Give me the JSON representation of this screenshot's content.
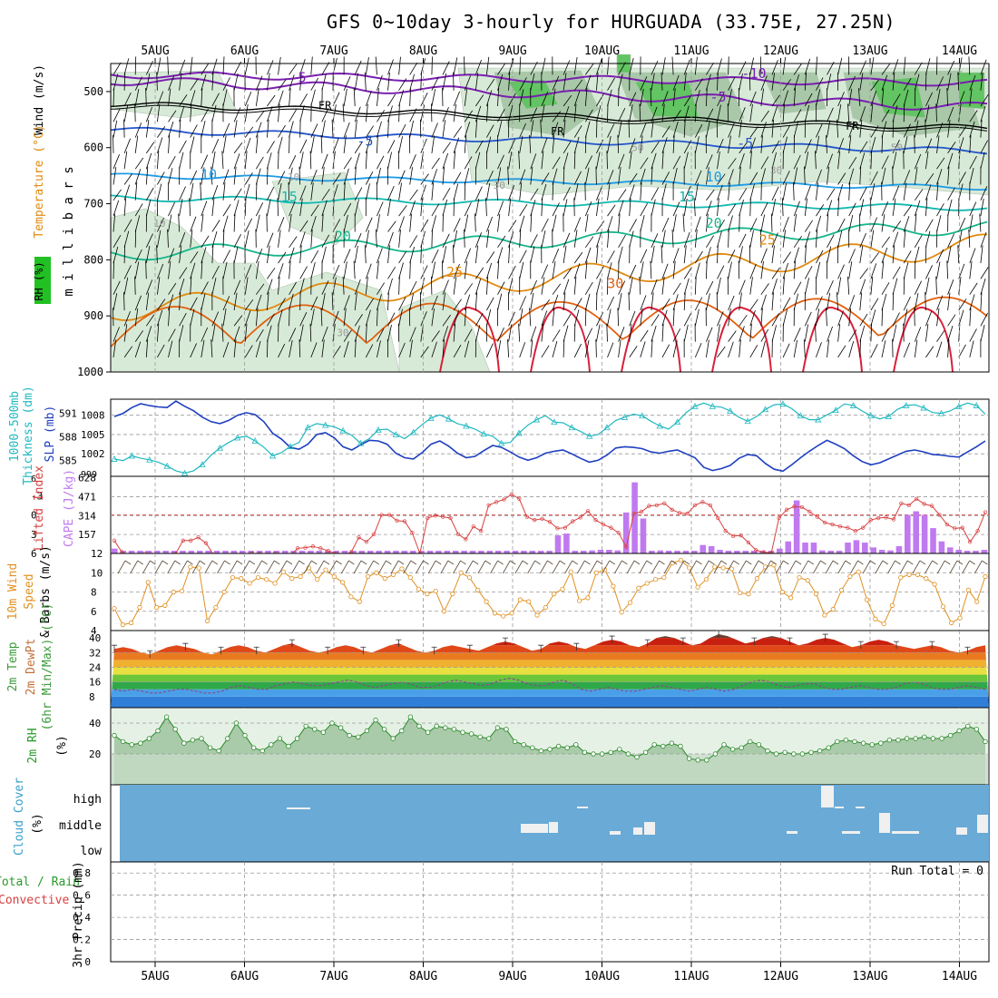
{
  "header": {
    "title": "GFS 0~10day 3-hourly for HURGUADA (33.75E, 27.25N)"
  },
  "days": [
    "5AUG",
    "6AUG",
    "7AUG",
    "8AUG",
    "9AUG",
    "10AUG",
    "11AUG",
    "12AUG",
    "13AUG",
    "14AUG"
  ],
  "colors": {
    "rh_fill": "#d7ead7",
    "rh_dark": "#a8c8a8",
    "rh_green": "#62c462",
    "temp_cold": "#7a1fb0",
    "temp_blue": "#2255cc",
    "temp_lblue": "#1e9be6",
    "temp_cyan": "#11b8b0",
    "temp_teal": "#16b58a",
    "temp_orange": "#e08a10",
    "temp_dorange": "#e06010",
    "temp_red": "#d8203a",
    "slp": "#1f3fbf",
    "thick": "#20b8c0",
    "cape": "#c07af0",
    "li": "#d84040",
    "wind": "#e09020",
    "cloud_bg": "#6aaad6"
  },
  "chart_data": [
    {
      "id": "upper-air",
      "type": "heatmap",
      "title": "GFS 0~10day 3-hourly for HURGUADA (33.75E, 27.25N)",
      "ylabel": "millibars",
      "left_labels": [
        "Wind (m/s)",
        "Temperature (°C)",
        "RH (%)"
      ],
      "y_ticks": [
        500,
        600,
        700,
        800,
        900,
        1000
      ],
      "ylim": [
        1000,
        450
      ],
      "contour_labels": [
        {
          "text": "-10",
          "x": 6.7,
          "p": 468
        },
        {
          "text": "-5",
          "x": 1.6,
          "p": 475
        },
        {
          "text": "-5",
          "x": 6.3,
          "p": 510
        },
        {
          "text": "FR",
          "x": 1.9,
          "p": 524
        },
        {
          "text": "FR",
          "x": 4.5,
          "p": 570
        },
        {
          "text": "FR",
          "x": 7.8,
          "p": 560
        },
        {
          "text": "-5",
          "x": 2.35,
          "p": 588
        },
        {
          "text": "-5",
          "x": 6.6,
          "p": 592
        },
        {
          "text": "10",
          "x": 0.6,
          "p": 648
        },
        {
          "text": "10",
          "x": 6.25,
          "p": 652
        },
        {
          "text": "15",
          "x": 1.5,
          "p": 688
        },
        {
          "text": "15",
          "x": 5.95,
          "p": 688
        },
        {
          "text": "20",
          "x": 2.1,
          "p": 758
        },
        {
          "text": "20",
          "x": 6.25,
          "p": 735
        },
        {
          "text": "25",
          "x": 3.35,
          "p": 822
        },
        {
          "text": "25",
          "x": 6.85,
          "p": 765
        },
        {
          "text": "30",
          "x": 5.15,
          "p": 842
        }
      ],
      "rh_labels": [
        {
          "text": "10",
          "x": 1.55,
          "p": 652
        },
        {
          "text": "30",
          "x": 3.85,
          "p": 667
        },
        {
          "text": "50",
          "x": 5.4,
          "p": 600
        },
        {
          "text": "30",
          "x": 6.95,
          "p": 640
        },
        {
          "text": "50",
          "x": 8.3,
          "p": 600
        },
        {
          "text": "10",
          "x": 0.05,
          "p": 735
        },
        {
          "text": "30",
          "x": 2.1,
          "p": 930
        }
      ]
    },
    {
      "id": "slp-thickness",
      "type": "line",
      "left_labels": [
        "1000-500mb",
        "Thickness (dm)",
        "SLP (mb)"
      ],
      "y_left_ticks": [
        585,
        588,
        591
      ],
      "y_right_ticks": [
        1002,
        1005,
        1008
      ],
      "y_extra_ticks": [
        "999"
      ],
      "series": [
        {
          "name": "SLP (mb)",
          "values": [
            1007.8,
            1008.3,
            1009.2,
            1009.8,
            1009.5,
            1009.3,
            1009.2,
            1010.2,
            1009.4,
            1008.7,
            1007.7,
            1007.0,
            1006.7,
            1007.2,
            1008.0,
            1008.4,
            1008.1,
            1007.0,
            1005.2,
            1004.3,
            1003.0,
            1002.7,
            1003.5,
            1005.0,
            1005.3,
            1004.5,
            1003.1,
            1002.6,
            1003.4,
            1004.1,
            1004.0,
            1003.5,
            1002.1,
            1001.4,
            1001.2,
            1002.2,
            1003.5,
            1004.0,
            1003.2,
            1002.1,
            1001.4,
            1001.6,
            1002.5,
            1003.3,
            1003.0,
            1002.3,
            1001.5,
            1001.0,
            1001.4,
            1002.1,
            1002.4,
            1002.6,
            1002.0,
            1001.3,
            1000.7,
            1001.0,
            1001.8,
            1002.9,
            1003.1,
            1003.0,
            1002.8,
            1002.3,
            1002.1,
            1002.4,
            1002.6,
            1002.0,
            1001.4,
            999.9,
            999.4,
            999.7,
            1000.2,
            1001.3,
            1001.9,
            1001.7,
            1000.5,
            999.6,
            999.3,
            1000.3,
            1001.4,
            1002.4,
            1003.3,
            1004.1,
            1003.5,
            1002.8,
            1001.7,
            1000.8,
            1000.3,
            1000.6,
            1001.2,
            1001.8,
            1002.4,
            1002.6,
            1002.3,
            1001.9,
            1001.8,
            1001.6,
            1001.5,
            1002.3,
            1003.1,
            1004.0
          ]
        },
        {
          "name": "1000-500mb Thickness (dm)",
          "values": [
            585.2,
            585.0,
            585.6,
            585.3,
            585.1,
            584.8,
            584.3,
            583.7,
            583.4,
            583.7,
            584.5,
            585.7,
            586.6,
            587.3,
            587.9,
            588.1,
            587.5,
            586.7,
            585.6,
            586.0,
            586.8,
            587.3,
            589.2,
            589.7,
            589.5,
            589.3,
            588.8,
            588.2,
            587.2,
            587.8,
            588.9,
            589.0,
            588.3,
            587.8,
            588.6,
            589.6,
            590.4,
            590.8,
            590.3,
            589.7,
            589.4,
            589.0,
            588.4,
            588.1,
            587.2,
            587.3,
            588.5,
            589.5,
            590.2,
            590.7,
            589.9,
            589.8,
            589.2,
            588.7,
            588.1,
            588.3,
            589.2,
            590.1,
            590.5,
            590.9,
            590.7,
            590.0,
            589.4,
            589.0,
            589.9,
            591.1,
            591.9,
            592.3,
            591.9,
            591.8,
            591.3,
            590.5,
            590.0,
            590.6,
            591.5,
            592.1,
            592.2,
            591.6,
            590.7,
            590.2,
            590.2,
            590.8,
            591.4,
            592.2,
            592.0,
            591.3,
            590.7,
            590.3,
            590.6,
            591.5,
            592.0,
            592.1,
            591.7,
            591.1,
            591.0,
            591.3,
            591.9,
            592.3,
            592.0,
            590.9
          ]
        }
      ]
    },
    {
      "id": "li-cape",
      "type": "bar",
      "left_labels": [
        "Lifted Index",
        "CAPE (J/kg)"
      ],
      "y_left_ticks": [
        "-3",
        "0",
        "3",
        "6"
      ],
      "y_cape_ticks": [
        157,
        314,
        471,
        628
      ],
      "y_left_top": "6",
      "cape": [
        40,
        0,
        0,
        0,
        0,
        0,
        0,
        0,
        0,
        0,
        0,
        0,
        0,
        0,
        0,
        0,
        0,
        0,
        0,
        0,
        0,
        0,
        0,
        0,
        0,
        0,
        0,
        0,
        0,
        0,
        0,
        0,
        0,
        0,
        0,
        0,
        0,
        0,
        0,
        0,
        0,
        0,
        0,
        0,
        0,
        0,
        0,
        0,
        0,
        0,
        0,
        15,
        150,
        165,
        10,
        15,
        25,
        30,
        30,
        25,
        340,
        590,
        290,
        15,
        25,
        5,
        0,
        10,
        10,
        70,
        60,
        30,
        15,
        5,
        10,
        15,
        20,
        20,
        40,
        100,
        440,
        90,
        90,
        25,
        0,
        5,
        90,
        110,
        90,
        50,
        30,
        25,
        60,
        320,
        350,
        320,
        210,
        100,
        50,
        30,
        20,
        10,
        30
      ],
      "li": [
        4.0,
        5.8,
        6.5,
        6.3,
        6.0,
        6.2,
        6.6,
        6.3,
        6.1,
        4.0,
        4.0,
        3.5,
        4.4,
        6.2,
        6.3,
        6.5,
        6.2,
        6.3,
        6.0,
        6.1,
        6.2,
        6.0,
        6.3,
        6.4,
        5.2,
        5.1,
        4.9,
        5.2,
        5.6,
        6.0,
        6.3,
        5.8,
        3.5,
        4.2,
        3.0,
        0.0,
        0.0,
        0.9,
        1.0,
        2.8,
        6.0,
        0.5,
        0.1,
        0.3,
        0.5,
        3.0,
        3.8,
        1.8,
        2.5,
        -1.5,
        -2.0,
        -2.4,
        -3.2,
        -2.5,
        0.3,
        0.8,
        0.6,
        1.1,
        2.1,
        2.0,
        1.0,
        0.4,
        -0.6,
        0.8,
        1.5,
        2.0,
        2.8,
        5.0,
        -0.2,
        -0.5,
        -1.4,
        -1.5,
        -1.8,
        -0.8,
        -0.3,
        -0.2,
        -1.5,
        -2.0,
        -1.5,
        0.5,
        2.5,
        3.3,
        3.2,
        4.3,
        5.5,
        5.8,
        5.9,
        0.5,
        -0.8,
        -1.3,
        -1.2,
        -0.5,
        0.3,
        1.2,
        1.5,
        1.8,
        2.0,
        2.5,
        2.0,
        0.8,
        0.5,
        0.4,
        0.7,
        -1.8,
        -1.5,
        -2.5,
        -1.7,
        -1.4,
        0.0,
        1.5,
        2.1,
        2.0,
        4.2,
        2.5,
        -0.4
      ]
    },
    {
      "id": "wind10m",
      "type": "line",
      "left_labels": [
        "10m Wind",
        "Speed",
        "& Barbs (m/s)"
      ],
      "y_ticks": [
        4,
        6,
        8,
        10,
        12
      ],
      "ylim": [
        4,
        12
      ],
      "values": [
        6.3,
        4.6,
        4.8,
        6.4,
        9.0,
        6.4,
        6.6,
        8.0,
        8.1,
        10.6,
        10.5,
        5.0,
        6.4,
        8.0,
        9.5,
        9.4,
        8.9,
        9.5,
        9.3,
        8.9,
        10.1,
        9.4,
        9.6,
        10.5,
        9.3,
        10.3,
        9.6,
        9.0,
        7.5,
        7.0,
        9.6,
        10.0,
        9.4,
        9.8,
        10.4,
        9.5,
        8.3,
        7.8,
        8.1,
        6.0,
        7.8,
        10.0,
        9.5,
        8.2,
        7.0,
        5.8,
        5.5,
        5.8,
        7.2,
        7.0,
        5.6,
        6.4,
        7.8,
        8.3,
        10.1,
        7.1,
        7.4,
        10.0,
        10.3,
        8.6,
        5.9,
        6.9,
        8.4,
        8.9,
        9.3,
        9.5,
        11.0,
        11.3,
        10.5,
        8.5,
        9.3,
        10.6,
        10.5,
        10.4,
        7.9,
        7.8,
        9.4,
        10.6,
        10.8,
        8.0,
        7.4,
        9.5,
        9.2,
        7.8,
        5.6,
        6.2,
        8.2,
        9.6,
        10.1,
        7.2,
        5.2,
        4.7,
        6.6,
        9.5,
        9.8,
        9.8,
        9.4,
        8.8,
        6.5,
        4.8,
        5.3,
        8.2,
        7.0,
        9.6
      ]
    },
    {
      "id": "temp2m",
      "type": "area",
      "left_labels": [
        "2m Temp",
        "2m DewPt",
        "(6hr Min/Max) (°C)"
      ],
      "y_ticks": [
        8,
        16,
        24,
        32,
        40
      ],
      "ylim": [
        2,
        44
      ],
      "temp": [
        34,
        35,
        34,
        32,
        31,
        33,
        35,
        36,
        35,
        34,
        32,
        31,
        33,
        35,
        36,
        35,
        33,
        32,
        34,
        36,
        37,
        35,
        33,
        32,
        33,
        35,
        36,
        35,
        33,
        32,
        34,
        36,
        37,
        35,
        33,
        32,
        33,
        35,
        36,
        35,
        34,
        33,
        35,
        37,
        38,
        37,
        35,
        33,
        34,
        37,
        38,
        37,
        35,
        34,
        36,
        38,
        39,
        38,
        36,
        35,
        37,
        40,
        41,
        40,
        38,
        36,
        37,
        40,
        42,
        41,
        39,
        37,
        38,
        40,
        41,
        40,
        38,
        36,
        37,
        39,
        40,
        39,
        37,
        35,
        36,
        38,
        39,
        38,
        36,
        35,
        34,
        35,
        36,
        35,
        33,
        32,
        33,
        35,
        36
      ],
      "dewpt": [
        12,
        11,
        12,
        11,
        10,
        10,
        11,
        12,
        12,
        11,
        10,
        10,
        11,
        13,
        14,
        13,
        12,
        12,
        14,
        15,
        16,
        15,
        14,
        14,
        15,
        16,
        17,
        16,
        14,
        13,
        14,
        15,
        16,
        15,
        13,
        13,
        14,
        16,
        17,
        16,
        15,
        14,
        15,
        17,
        18,
        17,
        15,
        14,
        14,
        16,
        17,
        15,
        12,
        11,
        12,
        13,
        12,
        11,
        11,
        12,
        13,
        14,
        13,
        12,
        11,
        12,
        13,
        12,
        11,
        12,
        14,
        16,
        17,
        16,
        14,
        13,
        14,
        15,
        15,
        13,
        12,
        12,
        13,
        14,
        13,
        12,
        12,
        13,
        15,
        16,
        15,
        13,
        12,
        12,
        13,
        14,
        13,
        12
      ]
    },
    {
      "id": "rh2m",
      "type": "area",
      "left_labels": [
        "2m RH",
        "(%)"
      ],
      "y_ticks": [
        20,
        40
      ],
      "ylim": [
        0,
        50
      ],
      "values": [
        32,
        28,
        26,
        27,
        30,
        35,
        44,
        36,
        27,
        29,
        30,
        24,
        22,
        30,
        40,
        32,
        24,
        22,
        26,
        30,
        25,
        30,
        38,
        36,
        34,
        40,
        37,
        32,
        31,
        35,
        42,
        36,
        30,
        35,
        44,
        38,
        34,
        38,
        37,
        36,
        34,
        33,
        31,
        30,
        37,
        36,
        28,
        26,
        24,
        22,
        23,
        25,
        24,
        26,
        21,
        20,
        20,
        21,
        23,
        20,
        18,
        21,
        26,
        25,
        27,
        25,
        17,
        16,
        16,
        20,
        26,
        23,
        24,
        28,
        26,
        22,
        20,
        21,
        20,
        20,
        21,
        22,
        24,
        28,
        29,
        28,
        27,
        26,
        27,
        29,
        29,
        30,
        30,
        31,
        30,
        30,
        32,
        35,
        38,
        36,
        28
      ]
    },
    {
      "id": "cloud",
      "type": "bar",
      "left_labels": [
        "Cloud Cover",
        "(%)"
      ],
      "levels": [
        "high",
        "middle",
        "low"
      ]
    },
    {
      "id": "precip",
      "type": "bar",
      "left_labels": [
        "Total / Rain",
        "Convective",
        "3hr Precip (mm)"
      ],
      "y_ticks": [
        0,
        0.2,
        0.4,
        0.6,
        0.8
      ],
      "ylim": [
        0,
        0.9
      ],
      "annotation": "Run Total = 0"
    }
  ]
}
